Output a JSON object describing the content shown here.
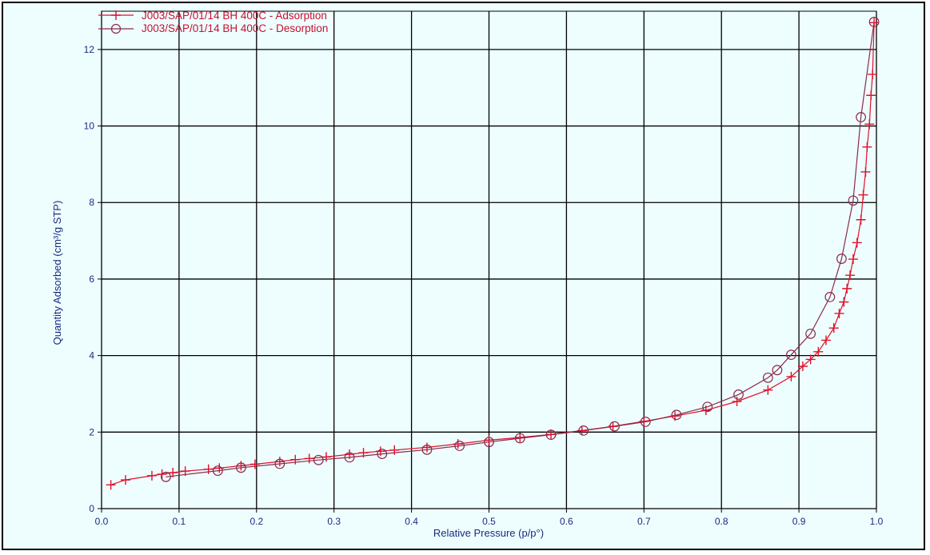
{
  "chart_data": {
    "type": "scatter",
    "xlabel": "Relative Pressure (p/p°)",
    "ylabel": "Quantity Adsorbed (cm³/g STP)",
    "xlim": [
      0.0,
      1.0
    ],
    "ylim": [
      0,
      13
    ],
    "xticks": [
      "0.0",
      "0.1",
      "0.2",
      "0.3",
      "0.4",
      "0.5",
      "0.6",
      "0.7",
      "0.8",
      "0.9",
      "1.0"
    ],
    "yticks": [
      "0",
      "2",
      "4",
      "6",
      "8",
      "10",
      "12"
    ],
    "grid": true,
    "legend_position": "top-left",
    "series": [
      {
        "name": "J003/SAP/01/14 BH 400C - Adsorption",
        "color": "#e0102a",
        "marker": "plus",
        "x": [
          0.012,
          0.031,
          0.065,
          0.078,
          0.092,
          0.108,
          0.138,
          0.152,
          0.18,
          0.198,
          0.23,
          0.25,
          0.268,
          0.29,
          0.32,
          0.338,
          0.36,
          0.378,
          0.42,
          0.46,
          0.5,
          0.54,
          0.58,
          0.62,
          0.66,
          0.7,
          0.74,
          0.78,
          0.82,
          0.86,
          0.89,
          0.905,
          0.915,
          0.925,
          0.935,
          0.945,
          0.952,
          0.958,
          0.962,
          0.966,
          0.97,
          0.975,
          0.98,
          0.983,
          0.986,
          0.988,
          0.991,
          0.993,
          0.995,
          0.997
        ],
        "y": [
          0.62,
          0.75,
          0.86,
          0.9,
          0.94,
          0.98,
          1.03,
          1.06,
          1.12,
          1.16,
          1.23,
          1.28,
          1.31,
          1.35,
          1.42,
          1.46,
          1.5,
          1.53,
          1.6,
          1.69,
          1.79,
          1.86,
          1.94,
          2.04,
          2.15,
          2.28,
          2.42,
          2.57,
          2.8,
          3.1,
          3.45,
          3.72,
          3.9,
          4.1,
          4.4,
          4.72,
          5.1,
          5.4,
          5.75,
          6.1,
          6.52,
          6.95,
          7.55,
          8.2,
          8.8,
          9.45,
          10.05,
          10.8,
          11.35,
          12.7
        ]
      },
      {
        "name": "J003/SAP/01/14 BH 400C - Desorption",
        "color": "#8a2a4a",
        "marker": "circle",
        "x": [
          0.083,
          0.15,
          0.18,
          0.23,
          0.28,
          0.32,
          0.362,
          0.42,
          0.462,
          0.5,
          0.54,
          0.58,
          0.622,
          0.662,
          0.702,
          0.742,
          0.782,
          0.822,
          0.86,
          0.872,
          0.89,
          0.915,
          0.94,
          0.955,
          0.97,
          0.98,
          0.997
        ],
        "y": [
          0.83,
          0.99,
          1.07,
          1.17,
          1.27,
          1.34,
          1.43,
          1.54,
          1.64,
          1.74,
          1.84,
          1.93,
          2.04,
          2.15,
          2.27,
          2.45,
          2.66,
          2.98,
          3.42,
          3.62,
          4.02,
          4.57,
          5.53,
          6.53,
          8.05,
          10.23,
          12.72
        ]
      }
    ]
  }
}
